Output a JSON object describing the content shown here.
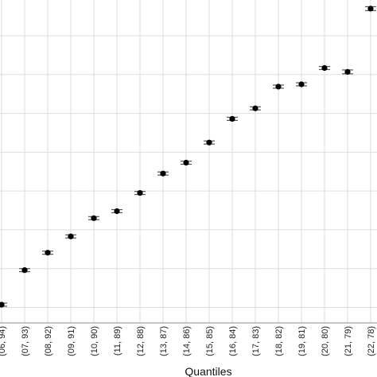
{
  "chart_data": {
    "type": "scatter",
    "title": "",
    "xlabel": "Quantiles",
    "ylabel": "",
    "grid": true,
    "error_bars": true,
    "categories": [
      "(06, 94)",
      "(07, 93)",
      "(08, 92)",
      "(09, 91)",
      "(10, 90)",
      "(11, 89)",
      "(12, 88)",
      "(13, 87)",
      "(14, 86)",
      "(15, 85)",
      "(16, 84)",
      "(17, 83)",
      "(18, 82)",
      "(19, 81)",
      "(20, 80)",
      "(21, 79)",
      "(22, 78)"
    ],
    "series": [
      {
        "values": [
          0.07,
          0.96,
          1.41,
          1.83,
          2.3,
          2.48,
          2.95,
          3.45,
          3.73,
          4.25,
          4.86,
          5.13,
          5.69,
          5.75,
          6.17,
          6.07,
          7.7
        ],
        "error_low": [
          0.04,
          0.04,
          0.04,
          0.04,
          0.04,
          0.04,
          0.04,
          0.04,
          0.04,
          0.04,
          0.04,
          0.04,
          0.04,
          0.04,
          0.04,
          0.05,
          0.05
        ],
        "error_high": [
          0.04,
          0.04,
          0.04,
          0.04,
          0.04,
          0.04,
          0.04,
          0.04,
          0.04,
          0.04,
          0.04,
          0.04,
          0.04,
          0.04,
          0.04,
          0.05,
          0.05
        ]
      }
    ],
    "ylim": [
      -0.4,
      7.8
    ],
    "ygrid": [
      0,
      1,
      2,
      3,
      4,
      5,
      6,
      7
    ],
    "colors": {
      "point": "#000000",
      "errorbar": "#555555",
      "grid": "#dedede",
      "axis": "#888888"
    }
  }
}
